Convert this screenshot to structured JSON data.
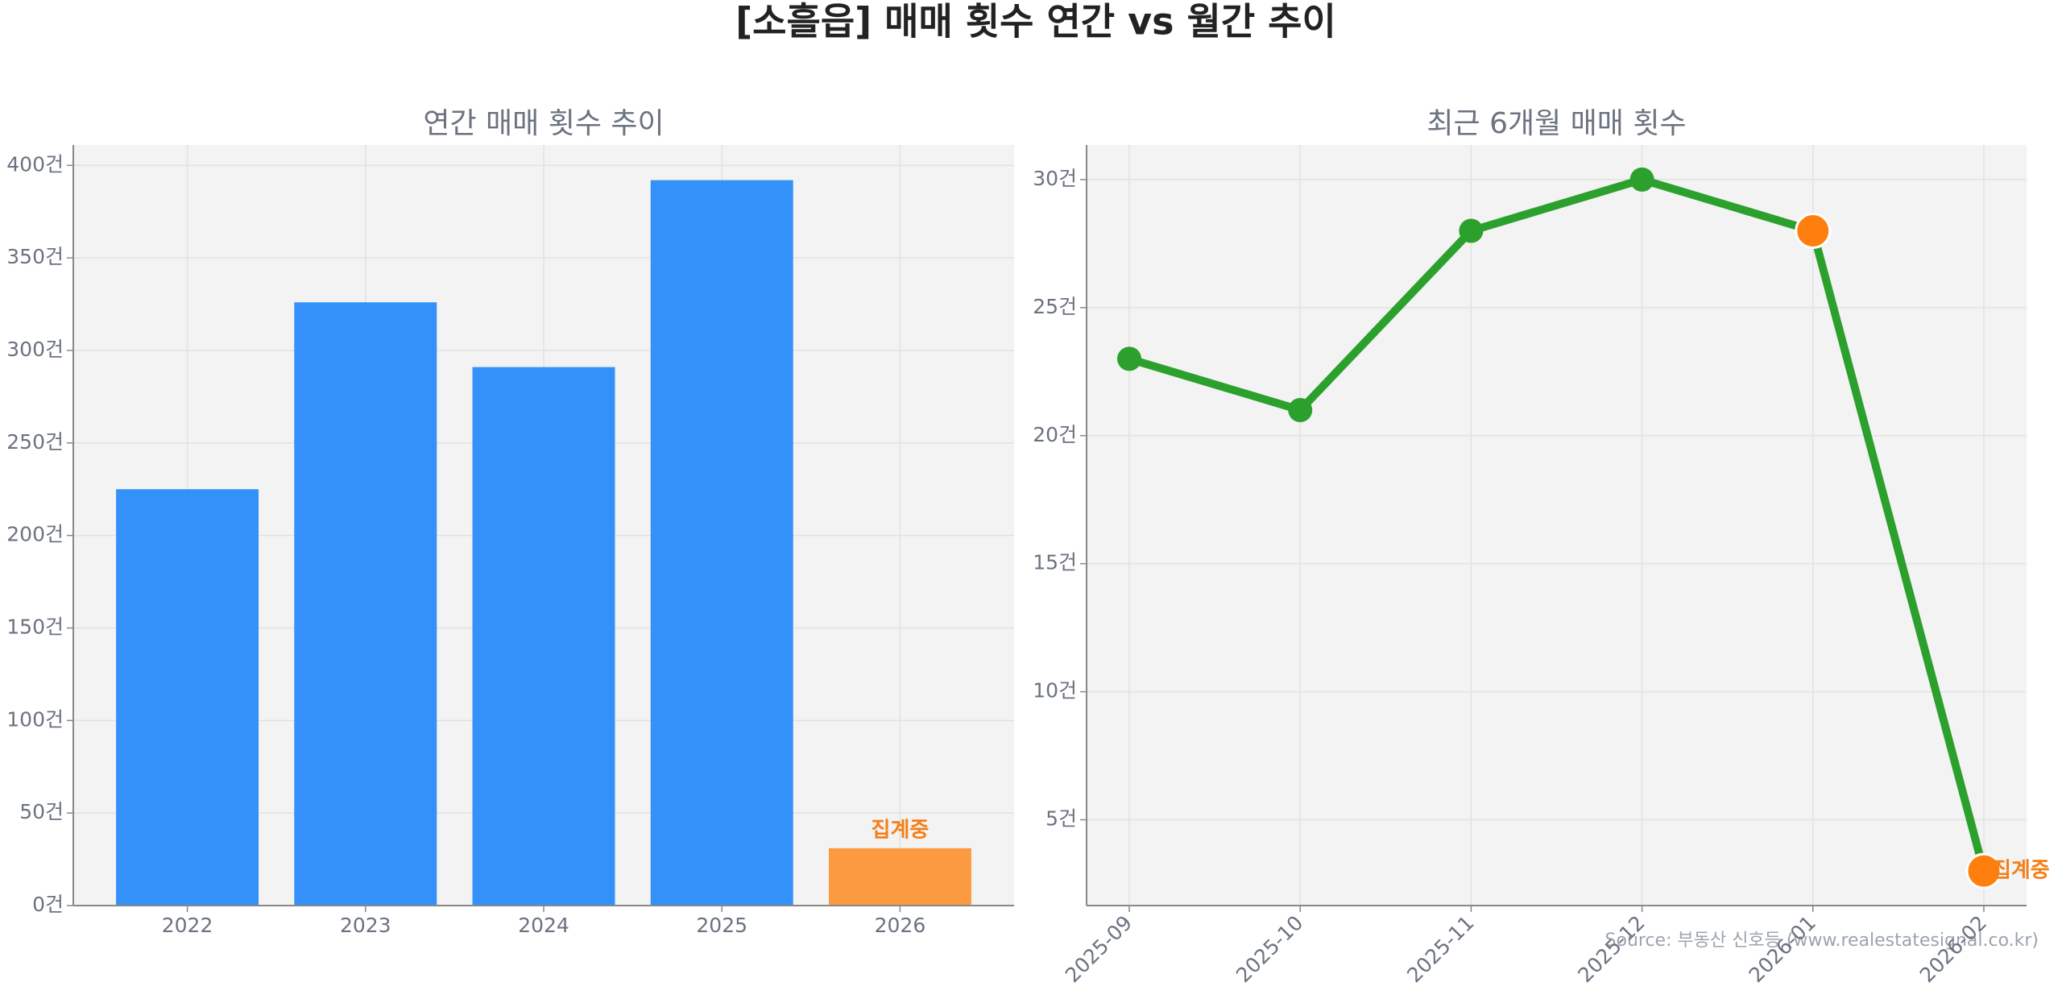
{
  "title": "[소흘읍] 매매 횟수 연간 vs 월간 추이",
  "source": "Source: 부동산 신호등 (www.realestatesignal.co.kr)",
  "chart_data": [
    {
      "type": "bar",
      "title": "연간 매매 횟수 추이",
      "categories": [
        "2022",
        "2023",
        "2024",
        "2025",
        "2026"
      ],
      "values": [
        225,
        326,
        291,
        392,
        31
      ],
      "colors": [
        "#3391f9",
        "#3391f9",
        "#3391f9",
        "#3391f9",
        "#fb9a40"
      ],
      "annotation": "집계중",
      "annotation_color": "#f57f17",
      "ylim": [
        0,
        411
      ],
      "yticks": [
        {
          "value": 0,
          "label": "0건"
        },
        {
          "value": 50,
          "label": "50건"
        },
        {
          "value": 100,
          "label": "100건"
        },
        {
          "value": 150,
          "label": "150건"
        },
        {
          "value": 200,
          "label": "200건"
        },
        {
          "value": 250,
          "label": "250건"
        },
        {
          "value": 300,
          "label": "300건"
        },
        {
          "value": 350,
          "label": "350건"
        },
        {
          "value": 400,
          "label": "400건"
        }
      ],
      "grid": true
    },
    {
      "type": "line",
      "title": "최근 6개월 매매 횟수",
      "categories": [
        "2025-09",
        "2025-10",
        "2025-11",
        "2025-12",
        "2026-01",
        "2026-02"
      ],
      "values": [
        23,
        21,
        28,
        30,
        28,
        3
      ],
      "color": "#2ca02c",
      "marker_colors": [
        "#2ca02c",
        "#2ca02c",
        "#2ca02c",
        "#2ca02c",
        "#ff7f0e",
        "#ff7f0e"
      ],
      "annotation": "집계중",
      "annotation_color": "#f57f17",
      "ylim": [
        1.65,
        31.35
      ],
      "yticks": [
        {
          "value": 5,
          "label": "5건"
        },
        {
          "value": 10,
          "label": "10건"
        },
        {
          "value": 15,
          "label": "15건"
        },
        {
          "value": 20,
          "label": "20건"
        },
        {
          "value": 25,
          "label": "25건"
        },
        {
          "value": 30,
          "label": "30건"
        }
      ],
      "grid": true
    }
  ]
}
